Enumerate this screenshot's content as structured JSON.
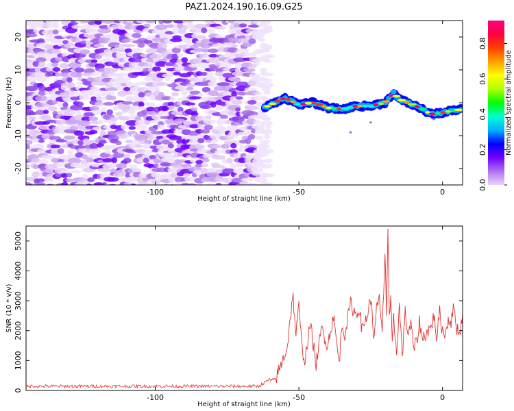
{
  "title": "PAZ1.2024.190.16.09.G25",
  "chart_data": [
    {
      "type": "heatmap",
      "xlabel": "Height of straight line (km)",
      "ylabel": "Frequency (Hz)",
      "xlim": [
        -145,
        7
      ],
      "ylim": [
        -25,
        25
      ],
      "x_ticks": [
        -100,
        -50,
        0
      ],
      "x_tick_labels": [
        "-100",
        "-50",
        "0"
      ],
      "y_ticks": [
        -20,
        -10,
        0,
        10,
        20
      ],
      "y_tick_labels": [
        "-20",
        "-10",
        "0",
        "10",
        "20"
      ],
      "noise_region_x": [
        -145,
        -62
      ],
      "signal_trace": {
        "x": [
          -62,
          -55,
          -50,
          -45,
          -40,
          -35,
          -30,
          -25,
          -20,
          -17,
          -15,
          -12,
          -8,
          -5,
          -3,
          0,
          3,
          7
        ],
        "y": [
          -1.5,
          1.5,
          -0.5,
          0,
          -1.5,
          -2,
          -1,
          -1,
          0,
          3,
          1,
          0,
          -1.5,
          -3,
          -3.5,
          -3,
          -2.5,
          -2
        ]
      },
      "colorbar": {
        "label": "Normalized spectral amplitude",
        "range": [
          0,
          0.93
        ],
        "ticks": [
          0.0,
          0.2,
          0.4,
          0.6,
          0.8
        ],
        "tick_labels": [
          "0.0",
          "0.2",
          "0.4",
          "0.6",
          "0.8"
        ],
        "colors": [
          "#e8d8f8",
          "#b070f0",
          "#7000ff",
          "#0000ff",
          "#00b0ff",
          "#00ffd0",
          "#00ff00",
          "#b0ff00",
          "#ffff00",
          "#ffa000",
          "#ff4000",
          "#ff0040",
          "#ff0080"
        ]
      }
    },
    {
      "type": "line",
      "xlabel": "Height of straight line (km)",
      "ylabel": "SNR (10 * v/v)",
      "xlim": [
        -145,
        7
      ],
      "ylim": [
        0,
        5500
      ],
      "x_ticks": [
        -100,
        -50,
        0
      ],
      "x_tick_labels": [
        "-100",
        "-50",
        "0"
      ],
      "y_ticks": [
        0,
        1000,
        2000,
        3000,
        4000,
        5000
      ],
      "y_tick_labels": [
        "0",
        "1000",
        "2000",
        "3000",
        "4000",
        "5000"
      ],
      "line_color": "#e03030",
      "x": [
        -145,
        -130,
        -115,
        -100,
        -85,
        -70,
        -62,
        -58,
        -56,
        -54,
        -53,
        -52,
        -51,
        -50,
        -49,
        -48,
        -46,
        -44,
        -42,
        -40,
        -38,
        -36,
        -35,
        -34,
        -32,
        -30,
        -29,
        -28,
        -26,
        -25,
        -24,
        -23,
        -22,
        -21,
        -20,
        -19.5,
        -19,
        -18.5,
        -18,
        -17.5,
        -17,
        -16,
        -15,
        -14,
        -13,
        -12,
        -11,
        -10,
        -9,
        -8,
        -7,
        -6,
        -5,
        -4,
        -3,
        -2,
        -1,
        0,
        1,
        2,
        3,
        4,
        5,
        6,
        7
      ],
      "y": [
        150,
        150,
        150,
        150,
        150,
        150,
        200,
        400,
        900,
        1500,
        2500,
        3100,
        1900,
        2800,
        1500,
        1000,
        2200,
        900,
        2100,
        1500,
        2500,
        900,
        2200,
        1900,
        2900,
        2500,
        2800,
        2000,
        2600,
        3100,
        1800,
        2700,
        3000,
        1900,
        4700,
        2500,
        5500,
        2300,
        3000,
        1400,
        2400,
        1300,
        2800,
        1200,
        2600,
        1900,
        2200,
        1400,
        1600,
        2300,
        1700,
        1900,
        2000,
        2100,
        2500,
        1800,
        2600,
        2000,
        1900,
        2400,
        2300,
        2800,
        2100,
        1900,
        2600
      ]
    }
  ]
}
